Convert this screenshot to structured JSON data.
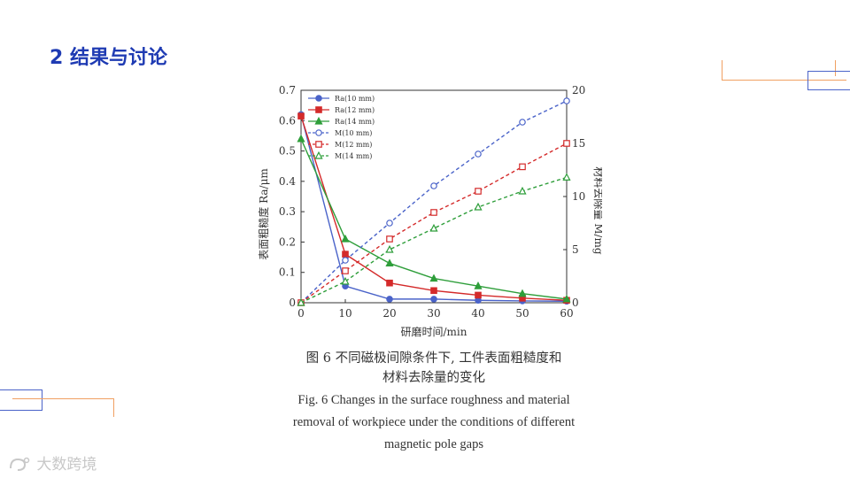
{
  "slide": {
    "title": "2 结果与讨论"
  },
  "caption": {
    "cn_line1": "图 6   不同磁极间隙条件下, 工件表面粗糙度和",
    "cn_line2": "材料去除量的变化",
    "en_line1": "Fig. 6    Changes in the surface roughness and material",
    "en_line2": "removal of workpiece under the conditions of different",
    "en_line3": "magnetic pole gaps"
  },
  "watermark": {
    "text": "大数跨境"
  },
  "colors": {
    "title": "#1f3bb3",
    "blue": "#4a63c9",
    "red": "#d42a2a",
    "green": "#2e9e3a",
    "orange": "#f0a062"
  },
  "chart_data": {
    "type": "line",
    "title": "",
    "xlabel": "研磨时间/min",
    "ylabel_left": "表面粗糙度 Ra/μm",
    "ylabel_right": "材料去除量 M/mg",
    "x": [
      0,
      10,
      20,
      30,
      40,
      50,
      60
    ],
    "xlim": [
      0,
      60
    ],
    "ylim_left": [
      0,
      0.7
    ],
    "ylim_right": [
      0,
      20
    ],
    "x_ticks": [
      "0",
      "10",
      "20",
      "30",
      "40",
      "50",
      "60"
    ],
    "y_left_ticks": [
      "0",
      "0.1",
      "0.2",
      "0.3",
      "0.4",
      "0.5",
      "0.6",
      "0.7"
    ],
    "y_right_ticks": [
      "0",
      "5",
      "10",
      "15",
      "20"
    ],
    "grid": false,
    "legend_position": "top-left",
    "series": [
      {
        "name": "Ra(10 mm)",
        "axis": "left",
        "style": "solid",
        "marker": "circle",
        "color": "#4a63c9",
        "values": [
          0.62,
          0.055,
          0.012,
          0.012,
          0.008,
          0.006,
          0.005
        ]
      },
      {
        "name": "Ra(12 mm)",
        "axis": "left",
        "style": "solid",
        "marker": "square",
        "color": "#d42a2a",
        "values": [
          0.615,
          0.16,
          0.065,
          0.04,
          0.025,
          0.015,
          0.008
        ]
      },
      {
        "name": "Ra(14 mm)",
        "axis": "left",
        "style": "solid",
        "marker": "triangle",
        "color": "#2e9e3a",
        "values": [
          0.54,
          0.21,
          0.13,
          0.08,
          0.055,
          0.03,
          0.012
        ]
      },
      {
        "name": "M(10 mm)",
        "axis": "right",
        "style": "dashed",
        "marker": "circle",
        "color": "#4a63c9",
        "values": [
          0,
          4.0,
          7.5,
          11.0,
          14.0,
          17.0,
          19.0
        ]
      },
      {
        "name": "M(12 mm)",
        "axis": "right",
        "style": "dashed",
        "marker": "square",
        "color": "#d42a2a",
        "values": [
          0,
          3.0,
          6.0,
          8.5,
          10.5,
          12.8,
          15.0
        ]
      },
      {
        "name": "M(14 mm)",
        "axis": "right",
        "style": "dashed",
        "marker": "triangle",
        "color": "#2e9e3a",
        "values": [
          0,
          2.0,
          5.0,
          7.0,
          9.0,
          10.5,
          11.8
        ]
      }
    ]
  }
}
